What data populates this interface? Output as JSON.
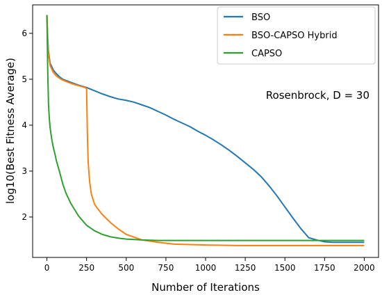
{
  "chart_data": {
    "type": "line",
    "title": "",
    "xlabel": "Number of Iterations",
    "ylabel": "log10(Best Fitness Average)",
    "xlim": [
      -90,
      2090
    ],
    "ylim": [
      1.12,
      6.62
    ],
    "xticks": [
      0,
      250,
      500,
      750,
      1000,
      1250,
      1500,
      1750,
      2000
    ],
    "yticks": [
      2,
      3,
      4,
      5,
      6
    ],
    "grid": false,
    "legend_position": "top-right",
    "annotation": "Rosenbrock, D = 30",
    "series": [
      {
        "name": "BSO",
        "color": "#1f77b4",
        "x": [
          0,
          5,
          10,
          20,
          40,
          60,
          80,
          100,
          130,
          160,
          200,
          250,
          300,
          350,
          400,
          450,
          500,
          550,
          600,
          650,
          700,
          750,
          800,
          850,
          900,
          950,
          1000,
          1050,
          1100,
          1150,
          1200,
          1250,
          1300,
          1350,
          1400,
          1450,
          1500,
          1550,
          1600,
          1625,
          1650,
          1700,
          1750,
          1800,
          1900,
          2000
        ],
        "y": [
          6.4,
          5.9,
          5.6,
          5.35,
          5.2,
          5.12,
          5.05,
          5.0,
          4.96,
          4.92,
          4.87,
          4.82,
          4.75,
          4.68,
          4.62,
          4.57,
          4.54,
          4.5,
          4.44,
          4.38,
          4.3,
          4.22,
          4.13,
          4.05,
          3.97,
          3.87,
          3.78,
          3.68,
          3.57,
          3.45,
          3.32,
          3.18,
          3.04,
          2.88,
          2.68,
          2.46,
          2.22,
          1.98,
          1.75,
          1.65,
          1.55,
          1.5,
          1.46,
          1.45,
          1.45,
          1.45
        ]
      },
      {
        "name": "BSO-CAPSO Hybrid",
        "color": "#ff7f0e",
        "x": [
          0,
          5,
          10,
          20,
          40,
          60,
          80,
          100,
          130,
          160,
          200,
          240,
          250,
          255,
          260,
          265,
          270,
          280,
          300,
          320,
          350,
          400,
          450,
          500,
          550,
          600,
          700,
          800,
          900,
          1000,
          1200,
          1500,
          2000
        ],
        "y": [
          6.4,
          5.85,
          5.55,
          5.3,
          5.15,
          5.07,
          5.02,
          4.98,
          4.94,
          4.9,
          4.86,
          4.82,
          4.8,
          3.8,
          3.2,
          2.95,
          2.75,
          2.5,
          2.28,
          2.18,
          2.05,
          1.88,
          1.74,
          1.62,
          1.56,
          1.5,
          1.45,
          1.41,
          1.4,
          1.39,
          1.38,
          1.38,
          1.38
        ]
      },
      {
        "name": "CAPSO",
        "color": "#2ca02c",
        "x": [
          0,
          5,
          10,
          15,
          20,
          30,
          40,
          50,
          60,
          80,
          100,
          120,
          150,
          200,
          250,
          300,
          350,
          400,
          450,
          500,
          600,
          700,
          800,
          1000,
          1500,
          2000
        ],
        "y": [
          6.4,
          5.2,
          4.45,
          4.15,
          3.95,
          3.7,
          3.52,
          3.38,
          3.22,
          2.98,
          2.72,
          2.52,
          2.3,
          2.02,
          1.82,
          1.7,
          1.62,
          1.57,
          1.54,
          1.52,
          1.5,
          1.49,
          1.49,
          1.49,
          1.49,
          1.49
        ]
      }
    ]
  }
}
